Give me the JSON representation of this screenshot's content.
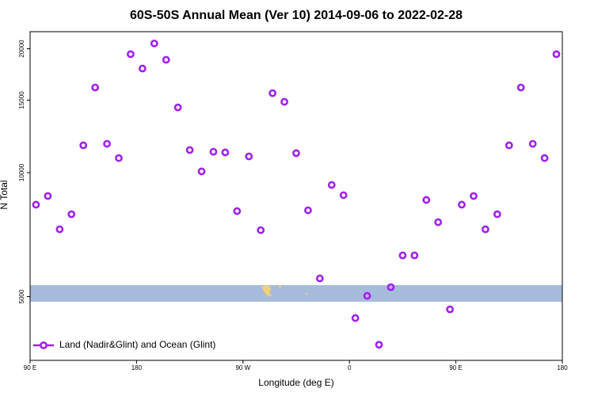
{
  "chart_data": {
    "type": "scatter",
    "title": "60S-50S Annual Mean (Ver 10)   2014-09-06 to 2022-02-28",
    "x_label": "Longitude (deg E)",
    "y_label": "N Total",
    "log_y": true,
    "legend_position": "bottom-left",
    "xlim": [
      -270,
      180
    ],
    "ylim": [
      3500,
      22000
    ],
    "xticks": [
      {
        "value": -270,
        "label": "90 E"
      },
      {
        "value": -180,
        "label": "180"
      },
      {
        "value": -90,
        "label": "90 W"
      },
      0,
      {
        "value": 90,
        "label": "90 E"
      },
      180
    ],
    "yticks": [
      5000,
      10000,
      15000,
      20000
    ],
    "series": [
      {
        "name": "Land (Nadir&Glint) and Ocean (Glint)",
        "color": "#a020f0",
        "x": [
          -265,
          -255,
          -245,
          -235,
          -225,
          -215,
          -205,
          -195,
          -185,
          -175,
          -165,
          -155,
          -145,
          -135,
          -125,
          -115,
          -105,
          -95,
          -85,
          -75,
          -65,
          -55,
          -45,
          -35,
          -25,
          -15,
          -5,
          5,
          15,
          25,
          35,
          45,
          55,
          65,
          75,
          85,
          95,
          105,
          115,
          125,
          135,
          145,
          155,
          165,
          175
        ],
        "values": [
          8360,
          8775,
          7285,
          7925,
          11650,
          16100,
          11750,
          10850,
          19400,
          17900,
          20600,
          18800,
          14400,
          11350,
          10070,
          11240,
          11200,
          8065,
          10950,
          7250,
          15600,
          14860,
          11150,
          8100,
          5535,
          9335,
          8815,
          4435,
          5020,
          3820,
          5270,
          6295,
          6295,
          8585,
          7580,
          4655,
          8360,
          8775,
          7285,
          7925,
          11650,
          16100,
          11750,
          10850,
          19400
        ]
      }
    ]
  }
}
